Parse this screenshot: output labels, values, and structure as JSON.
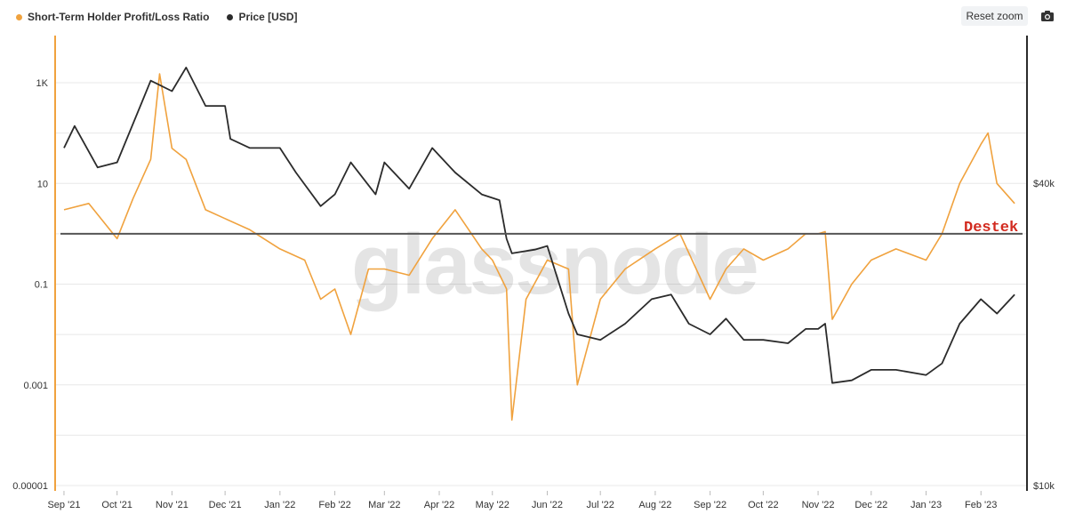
{
  "legend": {
    "series1_label": "Short-Term Holder Profit/Loss Ratio",
    "series2_label": "Price [USD]"
  },
  "toolbar": {
    "reset_label": "Reset zoom"
  },
  "icons": {
    "camera": "camera-icon"
  },
  "watermark": "glassnode",
  "colors": {
    "ratio": "#f0a23e",
    "price": "#2b2b2b",
    "reference_line": "#555555",
    "annotation": "#d22a1f"
  },
  "chart_data": {
    "type": "line",
    "x_axis": {
      "type": "date",
      "tick_labels": [
        "Sep '21",
        "Oct '21",
        "Nov '21",
        "Dec '21",
        "Jan '22",
        "Feb '22",
        "Mar '22",
        "Apr '22",
        "May '22",
        "Jun '22",
        "Jul '22",
        "Aug '22",
        "Sep '22",
        "Oct '22",
        "Nov '22",
        "Dec '22",
        "Jan '23",
        "Feb '23"
      ]
    },
    "y_left": {
      "scale": "log",
      "tick_labels": [
        "1K",
        "10",
        "0.1",
        "0.001",
        "0.00001"
      ],
      "tick_values": [
        1000,
        10,
        0.1,
        0.001,
        1e-05
      ]
    },
    "y_right": {
      "scale": "log",
      "tick_labels": [
        "$40k",
        "$10k"
      ],
      "tick_values": [
        40000,
        10000
      ]
    },
    "reference_line": {
      "value": 1,
      "label": "Destek"
    },
    "grid": true,
    "legend_position": "top-left",
    "series": [
      {
        "name": "Short-Term Holder Profit/Loss Ratio",
        "axis": "left",
        "x": [
          "2021-09-01",
          "2021-09-15",
          "2021-10-01",
          "2021-10-10",
          "2021-10-20",
          "2021-10-25",
          "2021-11-01",
          "2021-11-09",
          "2021-11-20",
          "2021-12-01",
          "2021-12-15",
          "2022-01-01",
          "2022-01-15",
          "2022-01-24",
          "2022-02-01",
          "2022-02-10",
          "2022-02-20",
          "2022-03-01",
          "2022-03-15",
          "2022-03-28",
          "2022-04-10",
          "2022-04-25",
          "2022-05-01",
          "2022-05-09",
          "2022-05-12",
          "2022-05-20",
          "2022-06-01",
          "2022-06-13",
          "2022-06-18",
          "2022-07-01",
          "2022-07-15",
          "2022-08-01",
          "2022-08-15",
          "2022-09-01",
          "2022-09-10",
          "2022-09-20",
          "2022-10-01",
          "2022-10-15",
          "2022-10-25",
          "2022-11-01",
          "2022-11-05",
          "2022-11-09",
          "2022-11-20",
          "2022-12-01",
          "2022-12-15",
          "2023-01-01",
          "2023-01-10",
          "2023-01-20",
          "2023-02-01",
          "2023-02-05",
          "2023-02-10",
          "2023-02-20"
        ],
        "y": [
          3,
          4,
          0.8,
          5,
          30,
          1500,
          50,
          30,
          3,
          2,
          1.2,
          0.5,
          0.3,
          0.05,
          0.08,
          0.01,
          0.2,
          0.2,
          0.15,
          0.8,
          3,
          0.5,
          0.3,
          0.08,
          0.0002,
          0.05,
          0.3,
          0.2,
          0.001,
          0.05,
          0.2,
          0.5,
          1,
          0.05,
          0.2,
          0.5,
          0.3,
          0.5,
          1,
          1,
          1.1,
          0.02,
          0.1,
          0.3,
          0.5,
          0.3,
          1,
          10,
          60,
          100,
          10,
          4
        ]
      },
      {
        "name": "Price [USD]",
        "axis": "right",
        "x": [
          "2021-09-01",
          "2021-09-07",
          "2021-09-20",
          "2021-10-01",
          "2021-10-15",
          "2021-10-20",
          "2021-11-01",
          "2021-11-09",
          "2021-11-20",
          "2021-12-01",
          "2021-12-04",
          "2021-12-15",
          "2022-01-01",
          "2022-01-10",
          "2022-01-24",
          "2022-02-01",
          "2022-02-10",
          "2022-02-24",
          "2022-03-01",
          "2022-03-15",
          "2022-03-28",
          "2022-04-10",
          "2022-04-25",
          "2022-05-05",
          "2022-05-09",
          "2022-05-12",
          "2022-05-25",
          "2022-06-01",
          "2022-06-13",
          "2022-06-18",
          "2022-07-01",
          "2022-07-15",
          "2022-07-30",
          "2022-08-10",
          "2022-08-20",
          "2022-09-01",
          "2022-09-10",
          "2022-09-20",
          "2022-10-01",
          "2022-10-15",
          "2022-10-25",
          "2022-11-01",
          "2022-11-05",
          "2022-11-09",
          "2022-11-20",
          "2022-12-01",
          "2022-12-15",
          "2023-01-01",
          "2023-01-10",
          "2023-01-20",
          "2023-02-01",
          "2023-02-10",
          "2023-02-20"
        ],
        "y": [
          47000,
          52000,
          43000,
          44000,
          58000,
          64000,
          61000,
          68000,
          57000,
          57000,
          49000,
          47000,
          47000,
          42000,
          36000,
          38000,
          44000,
          38000,
          44000,
          39000,
          47000,
          42000,
          38000,
          37000,
          31000,
          29000,
          29500,
          30000,
          22000,
          20000,
          19500,
          21000,
          23500,
          24000,
          21000,
          20000,
          21500,
          19500,
          19500,
          19200,
          20500,
          20500,
          21000,
          16000,
          16200,
          17000,
          17000,
          16600,
          17500,
          21000,
          23500,
          22000,
          24000
        ]
      }
    ]
  }
}
